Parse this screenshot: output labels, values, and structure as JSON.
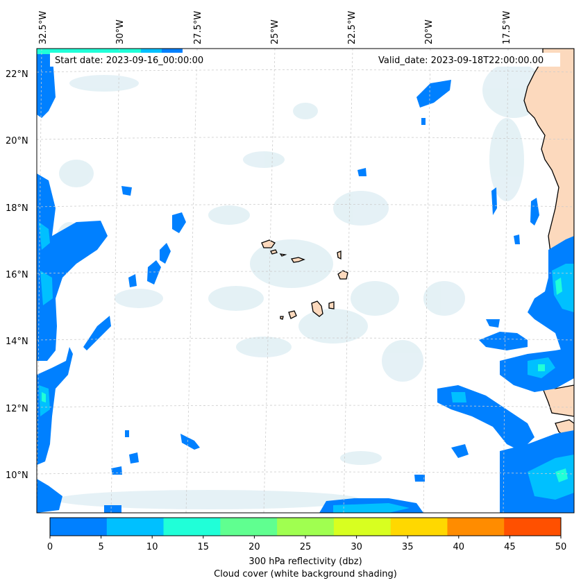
{
  "map": {
    "start_label": "Start date: 2023-09-16_00:00:00",
    "valid_label": "Valid_date: 2023-09-18T22:00:00.00",
    "lon_labels": [
      "32.5°W",
      "30°W",
      "27.5°W",
      "25°W",
      "22.5°W",
      "20°W",
      "17.5°W"
    ],
    "lat_labels": [
      "22°N",
      "20°N",
      "18°N",
      "16°N",
      "14°N",
      "12°N",
      "10°N"
    ],
    "colors": {
      "land": "#fcd9bd",
      "cloud": "#cfe6ee",
      "coast": "#000000",
      "grid": "#cccccc"
    }
  },
  "colorbar": {
    "ticks": [
      "0",
      "5",
      "10",
      "15",
      "20",
      "25",
      "30",
      "35",
      "40",
      "45",
      "50"
    ],
    "colors": [
      "#0080ff",
      "#00c0ff",
      "#20ffd8",
      "#60ff90",
      "#a0ff50",
      "#d8ff20",
      "#ffd800",
      "#ff8c00",
      "#ff5000"
    ],
    "label_line1": "300 hPa reflectivity (dbz)",
    "label_line2": "Cloud cover (white background shading)"
  }
}
